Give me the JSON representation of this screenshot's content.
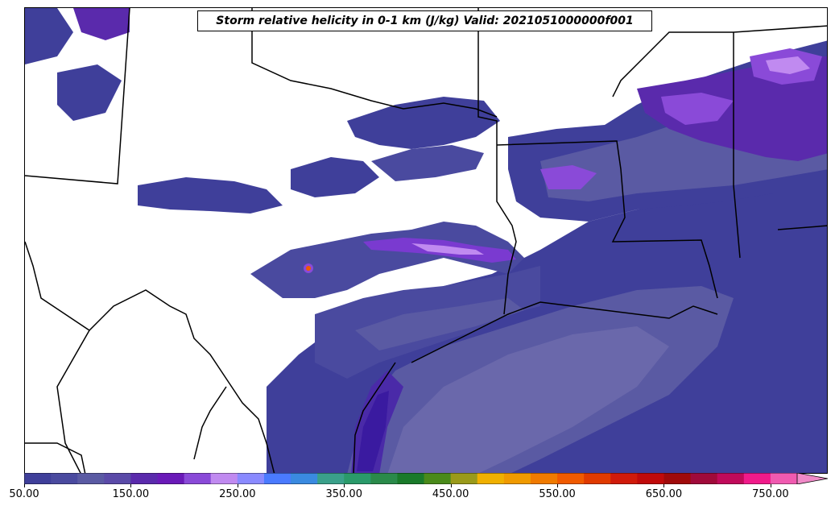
{
  "title": "Storm relative helicity in 0-1 km (J/kg) Valid: 2021051000000f001",
  "colorbar": {
    "min": 50,
    "max": 800,
    "step": 25,
    "tick_labels": [
      "50.00",
      "150.00",
      "250.00",
      "350.00",
      "450.00",
      "550.00",
      "650.00",
      "750.00"
    ],
    "tick_values": [
      50,
      150,
      250,
      350,
      450,
      550,
      650,
      750
    ],
    "extend": "max",
    "colors": [
      "#3f3f9a",
      "#4a4a9f",
      "#5a5aa3",
      "#5a4aa8",
      "#5a2aac",
      "#6a1ab8",
      "#8a4ad8",
      "#c08af0",
      "#8a8aff",
      "#4a7aff",
      "#3a8ae0",
      "#3aa08a",
      "#2a9a6a",
      "#2a8a4a",
      "#1a7a2a",
      "#4a8a1a",
      "#9a9a1a",
      "#f0b000",
      "#f09a00",
      "#f07a00",
      "#f05a00",
      "#e03a00",
      "#d01a0a",
      "#c00a0a",
      "#a00a0a",
      "#a00a3a",
      "#c00a5a",
      "#f01a8a",
      "#f05ab0",
      "#f08ac8"
    ]
  }
}
